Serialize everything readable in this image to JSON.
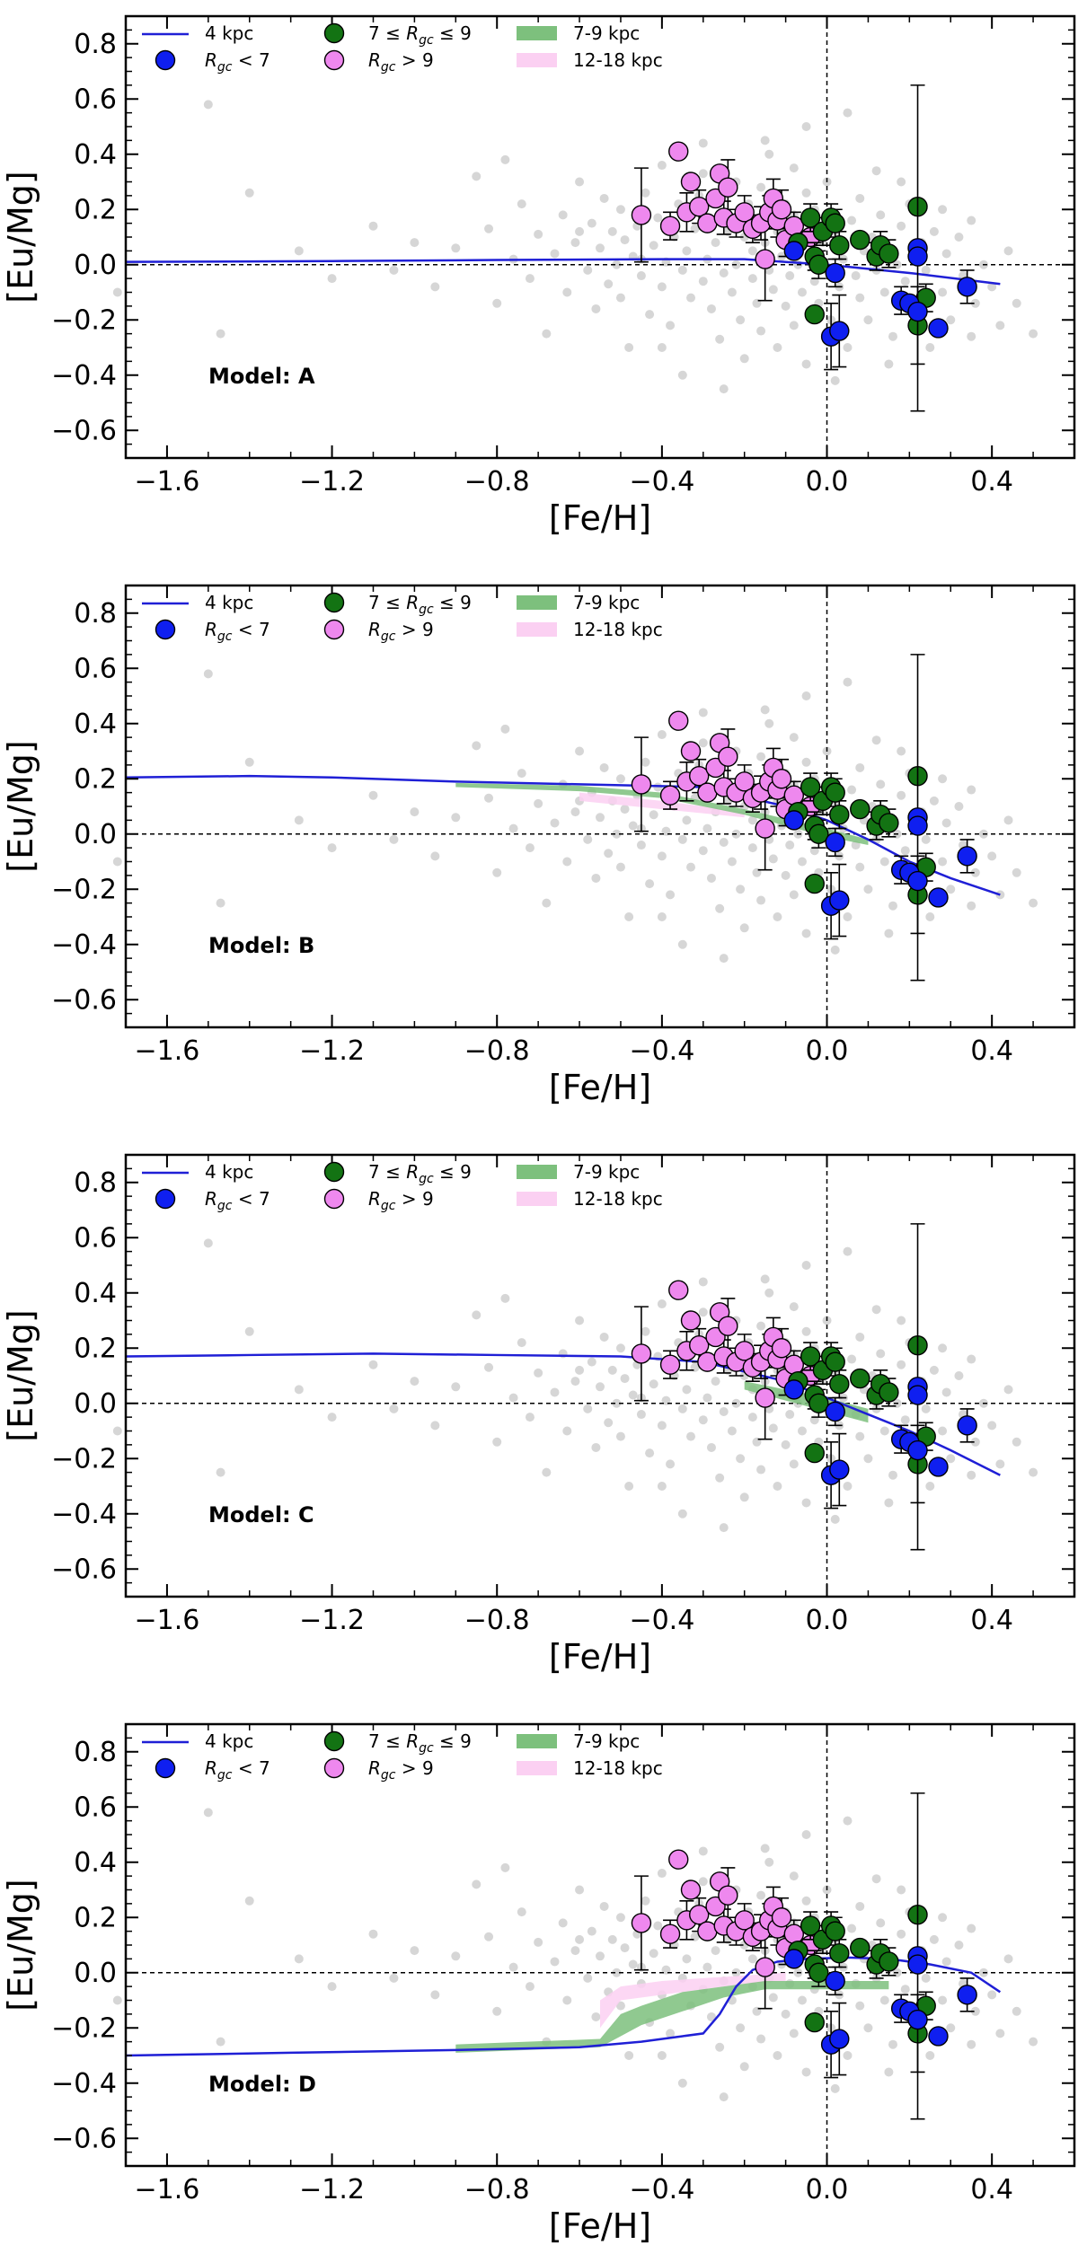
{
  "chart_data": {
    "type": "scatter",
    "xlabel": "[Fe/H]",
    "ylabel": "[Eu/Mg]",
    "xlim": [
      -1.7,
      0.6
    ],
    "ylim": [
      -0.7,
      0.9
    ],
    "xticks": [
      -1.6,
      -1.2,
      -0.8,
      -0.4,
      0.0,
      0.4
    ],
    "yticks": [
      -0.6,
      -0.4,
      -0.2,
      0.0,
      0.2,
      0.4,
      0.6,
      0.8
    ],
    "xtick_labels": [
      "−1.6",
      "−1.2",
      "−0.8",
      "−0.4",
      "0.0",
      "0.4"
    ],
    "ytick_labels": [
      "−0.6",
      "−0.4",
      "−0.2",
      "0.0",
      "0.2",
      "0.4",
      "0.6",
      "0.8"
    ],
    "reference_lines": {
      "x": 0.0,
      "y": 0.0
    },
    "legend": {
      "placement": "top-left",
      "entries": [
        {
          "key": "line4",
          "label_plain": "4 kpc"
        },
        {
          "key": "inner",
          "label_main": "R",
          "label_sub": "gc",
          "label_tail": " < 7"
        },
        {
          "key": "mid",
          "label_head": "7 ≤ ",
          "label_main": "R",
          "label_sub": "gc",
          "label_tail": " ≤ 9"
        },
        {
          "key": "outer",
          "label_main": "R",
          "label_sub": "gc",
          "label_tail": " > 9"
        },
        {
          "key": "band79",
          "label_plain": "7-9 kpc"
        },
        {
          "key": "band1218",
          "label_plain": "12-18 kpc"
        }
      ]
    },
    "colors": {
      "line4": "#1f1fd6",
      "inner": "#0f1ff0",
      "mid": "#137313",
      "outer": "#ee88ee",
      "band79": "#7dc07d",
      "band1218": "#fbd0f2",
      "background": "#d6d6d6"
    },
    "stars": {
      "outer": [
        {
          "x": -0.45,
          "y": 0.18,
          "e": 0.17
        },
        {
          "x": -0.38,
          "y": 0.14,
          "e": 0.05
        },
        {
          "x": -0.36,
          "y": 0.41,
          "e": 0.0
        },
        {
          "x": -0.34,
          "y": 0.19,
          "e": 0.07
        },
        {
          "x": -0.33,
          "y": 0.3,
          "e": 0.0
        },
        {
          "x": -0.31,
          "y": 0.21,
          "e": 0.06
        },
        {
          "x": -0.29,
          "y": 0.15,
          "e": 0.0
        },
        {
          "x": -0.27,
          "y": 0.24,
          "e": 0.0
        },
        {
          "x": -0.26,
          "y": 0.33,
          "e": 0.0
        },
        {
          "x": -0.25,
          "y": 0.17,
          "e": 0.06
        },
        {
          "x": -0.24,
          "y": 0.28,
          "e": 0.1
        },
        {
          "x": -0.22,
          "y": 0.15,
          "e": 0.05
        },
        {
          "x": -0.2,
          "y": 0.19,
          "e": 0.06
        },
        {
          "x": -0.18,
          "y": 0.13,
          "e": 0.05
        },
        {
          "x": -0.16,
          "y": 0.15,
          "e": 0.06
        },
        {
          "x": -0.15,
          "y": 0.02,
          "e": 0.15
        },
        {
          "x": -0.14,
          "y": 0.19,
          "e": 0.06
        },
        {
          "x": -0.13,
          "y": 0.24,
          "e": 0.07
        },
        {
          "x": -0.12,
          "y": 0.16,
          "e": 0.06
        },
        {
          "x": -0.11,
          "y": 0.2,
          "e": 0.07
        },
        {
          "x": -0.1,
          "y": 0.09,
          "e": 0.06
        },
        {
          "x": -0.08,
          "y": 0.14,
          "e": 0.05
        },
        {
          "x": -0.04,
          "y": 0.1,
          "e": 0.0
        }
      ],
      "mid": [
        {
          "x": -0.07,
          "y": 0.08,
          "e": 0.0
        },
        {
          "x": -0.04,
          "y": 0.17,
          "e": 0.05
        },
        {
          "x": -0.03,
          "y": 0.03,
          "e": 0.05
        },
        {
          "x": -0.03,
          "y": -0.18,
          "e": 0.0
        },
        {
          "x": -0.02,
          "y": 0.0,
          "e": 0.05
        },
        {
          "x": -0.01,
          "y": 0.12,
          "e": 0.05
        },
        {
          "x": 0.01,
          "y": 0.17,
          "e": 0.05
        },
        {
          "x": 0.02,
          "y": 0.15,
          "e": 0.05
        },
        {
          "x": 0.03,
          "y": 0.07,
          "e": 0.05
        },
        {
          "x": 0.08,
          "y": 0.09,
          "e": 0.0
        },
        {
          "x": 0.12,
          "y": 0.03,
          "e": 0.05
        },
        {
          "x": 0.13,
          "y": 0.07,
          "e": 0.05
        },
        {
          "x": 0.15,
          "y": 0.04,
          "e": 0.05
        },
        {
          "x": 0.22,
          "y": 0.21,
          "e": 0.0
        },
        {
          "x": 0.22,
          "y": -0.22,
          "e": 0.14
        },
        {
          "x": 0.24,
          "y": -0.12,
          "e": 0.05
        }
      ],
      "inner": [
        {
          "x": -0.08,
          "y": 0.05,
          "e": 0.0
        },
        {
          "x": 0.01,
          "y": -0.26,
          "e": 0.12
        },
        {
          "x": 0.02,
          "y": -0.03,
          "e": 0.05
        },
        {
          "x": 0.03,
          "y": -0.24,
          "e": 0.13
        },
        {
          "x": 0.18,
          "y": -0.13,
          "e": 0.05
        },
        {
          "x": 0.2,
          "y": -0.14,
          "e": 0.0
        },
        {
          "x": 0.22,
          "y": 0.06,
          "e": 0.59
        },
        {
          "x": 0.22,
          "y": 0.03,
          "e": 0.0
        },
        {
          "x": 0.22,
          "y": -0.17,
          "e": 0.0
        },
        {
          "x": 0.27,
          "y": -0.23,
          "e": 0.0
        },
        {
          "x": 0.34,
          "y": -0.08,
          "e": 0.06
        }
      ]
    },
    "background_stars": [
      [
        -1.72,
        -0.1
      ],
      [
        -1.5,
        0.58
      ],
      [
        -1.47,
        -0.25
      ],
      [
        -1.4,
        0.26
      ],
      [
        -1.28,
        0.05
      ],
      [
        -1.2,
        -0.05
      ],
      [
        -1.1,
        0.14
      ],
      [
        -1.05,
        -0.02
      ],
      [
        -1.0,
        0.08
      ],
      [
        -0.95,
        -0.08
      ],
      [
        -0.9,
        0.06
      ],
      [
        -0.85,
        0.32
      ],
      [
        -0.82,
        0.13
      ],
      [
        -0.8,
        -0.14
      ],
      [
        -0.78,
        0.38
      ],
      [
        -0.76,
        0.02
      ],
      [
        -0.74,
        0.22
      ],
      [
        -0.72,
        -0.05
      ],
      [
        -0.7,
        0.11
      ],
      [
        -0.68,
        -0.25
      ],
      [
        -0.66,
        0.04
      ],
      [
        -0.64,
        0.18
      ],
      [
        -0.63,
        -0.1
      ],
      [
        -0.61,
        0.08
      ],
      [
        -0.6,
        0.3
      ],
      [
        -0.58,
        -0.02
      ],
      [
        -0.57,
        0.15
      ],
      [
        -0.56,
        -0.16
      ],
      [
        -0.55,
        0.06
      ],
      [
        -0.54,
        0.24
      ],
      [
        -0.53,
        -0.07
      ],
      [
        -0.52,
        0.12
      ],
      [
        -0.51,
        0.0
      ],
      [
        -0.5,
        0.2
      ],
      [
        -0.5,
        -0.12
      ],
      [
        -0.49,
        0.09
      ],
      [
        -0.48,
        -0.3
      ],
      [
        -0.47,
        0.03
      ],
      [
        -0.46,
        0.14
      ],
      [
        -0.45,
        -0.04
      ],
      [
        -0.44,
        0.26
      ],
      [
        -0.43,
        -0.18
      ],
      [
        -0.42,
        0.07
      ],
      [
        -0.41,
        0.17
      ],
      [
        -0.4,
        -0.08
      ],
      [
        -0.4,
        0.36
      ],
      [
        -0.39,
        0.01
      ],
      [
        -0.38,
        -0.22
      ],
      [
        -0.37,
        0.1
      ],
      [
        -0.36,
        0.22
      ],
      [
        -0.35,
        -0.02
      ],
      [
        -0.35,
        -0.4
      ],
      [
        -0.34,
        0.05
      ],
      [
        -0.33,
        -0.12
      ],
      [
        -0.32,
        0.13
      ],
      [
        -0.31,
        0.25
      ],
      [
        -0.3,
        -0.06
      ],
      [
        -0.3,
        0.44
      ],
      [
        -0.29,
        0.02
      ],
      [
        -0.28,
        -0.16
      ],
      [
        -0.27,
        0.08
      ],
      [
        -0.26,
        -0.27
      ],
      [
        -0.25,
        0.18
      ],
      [
        -0.25,
        -0.03
      ],
      [
        -0.24,
        0.12
      ],
      [
        -0.23,
        -0.1
      ],
      [
        -0.22,
        0.3
      ],
      [
        -0.22,
        0.0
      ],
      [
        -0.21,
        -0.2
      ],
      [
        -0.2,
        0.1
      ],
      [
        -0.2,
        -0.34
      ],
      [
        -0.19,
        0.22
      ],
      [
        -0.18,
        -0.05
      ],
      [
        -0.18,
        0.05
      ],
      [
        -0.17,
        -0.14
      ],
      [
        -0.16,
        0.28
      ],
      [
        -0.16,
        -0.24
      ],
      [
        -0.15,
        0.08
      ],
      [
        -0.14,
        -0.02
      ],
      [
        -0.14,
        0.4
      ],
      [
        -0.13,
        -0.09
      ],
      [
        -0.12,
        0.12
      ],
      [
        -0.12,
        -0.3
      ],
      [
        -0.11,
        0.03
      ],
      [
        -0.1,
        -0.15
      ],
      [
        -0.1,
        0.22
      ],
      [
        -0.09,
        -0.04
      ],
      [
        -0.08,
        0.18
      ],
      [
        -0.08,
        -0.22
      ],
      [
        -0.07,
        0.0
      ],
      [
        -0.06,
        0.1
      ],
      [
        -0.06,
        -0.1
      ],
      [
        -0.05,
        0.26
      ],
      [
        -0.05,
        -0.36
      ],
      [
        -0.04,
        0.04
      ],
      [
        -0.03,
        -0.06
      ],
      [
        -0.03,
        0.2
      ],
      [
        -0.02,
        -0.14
      ],
      [
        -0.01,
        0.08
      ],
      [
        0.0,
        -0.02
      ],
      [
        0.0,
        0.3
      ],
      [
        0.01,
        -0.2
      ],
      [
        0.02,
        0.12
      ],
      [
        0.03,
        -0.08
      ],
      [
        0.04,
        0.02
      ],
      [
        0.05,
        -0.3
      ],
      [
        0.06,
        0.16
      ],
      [
        0.07,
        -0.04
      ],
      [
        0.08,
        0.24
      ],
      [
        0.08,
        -0.12
      ],
      [
        0.09,
        0.05
      ],
      [
        0.1,
        -0.2
      ],
      [
        0.11,
        0.1
      ],
      [
        0.12,
        -0.02
      ],
      [
        0.13,
        0.18
      ],
      [
        0.14,
        -0.1
      ],
      [
        0.15,
        0.06
      ],
      [
        0.16,
        -0.26
      ],
      [
        0.17,
        0.0
      ],
      [
        0.18,
        0.14
      ],
      [
        0.19,
        -0.06
      ],
      [
        0.2,
        0.22
      ],
      [
        0.21,
        -0.16
      ],
      [
        0.23,
        0.08
      ],
      [
        0.24,
        -0.02
      ],
      [
        0.25,
        -0.3
      ],
      [
        0.26,
        0.12
      ],
      [
        0.28,
        -0.1
      ],
      [
        0.29,
        0.04
      ],
      [
        0.3,
        -0.2
      ],
      [
        0.32,
        0.1
      ],
      [
        0.33,
        -0.04
      ],
      [
        0.35,
        0.16
      ],
      [
        0.36,
        -0.14
      ],
      [
        0.38,
        0.0
      ],
      [
        0.4,
        -0.08
      ],
      [
        0.42,
        -0.22
      ],
      [
        0.44,
        0.05
      ],
      [
        0.46,
        -0.14
      ],
      [
        0.5,
        -0.25
      ],
      [
        -0.05,
        0.5
      ],
      [
        0.05,
        0.55
      ],
      [
        -0.15,
        0.45
      ],
      [
        0.12,
        0.34
      ],
      [
        -0.25,
        -0.45
      ],
      [
        0.02,
        -0.42
      ],
      [
        0.15,
        -0.36
      ],
      [
        -0.4,
        -0.3
      ],
      [
        0.28,
        0.2
      ],
      [
        -0.6,
        0.12
      ],
      [
        -0.3,
        0.33
      ],
      [
        0.18,
        0.3
      ],
      [
        -0.08,
        0.35
      ],
      [
        0.35,
        -0.26
      ],
      [
        -0.45,
        0.02
      ]
    ],
    "panels": [
      {
        "label": "Model: A",
        "line4": [
          [
            -1.7,
            0.01
          ],
          [
            -1.2,
            0.013
          ],
          [
            -0.8,
            0.017
          ],
          [
            -0.4,
            0.02
          ],
          [
            -0.2,
            0.02
          ],
          [
            0.0,
            0.0
          ],
          [
            0.2,
            -0.03
          ],
          [
            0.42,
            -0.07
          ]
        ],
        "band79": [],
        "band1218": []
      },
      {
        "label": "Model: B",
        "line4": [
          [
            -1.7,
            0.205
          ],
          [
            -1.4,
            0.21
          ],
          [
            -1.2,
            0.205
          ],
          [
            -0.9,
            0.19
          ],
          [
            -0.6,
            0.18
          ],
          [
            -0.3,
            0.17
          ],
          [
            -0.1,
            0.1
          ],
          [
            0.0,
            0.05
          ],
          [
            0.1,
            -0.02
          ],
          [
            0.2,
            -0.1
          ],
          [
            0.3,
            -0.16
          ],
          [
            0.42,
            -0.22
          ]
        ],
        "band79": [
          [
            -0.9,
            0.185,
            0.17
          ],
          [
            -0.6,
            0.175,
            0.155
          ],
          [
            -0.4,
            0.15,
            0.13
          ],
          [
            -0.2,
            0.09,
            0.07
          ],
          [
            0.0,
            0.02,
            -0.01
          ],
          [
            0.1,
            -0.02,
            -0.04
          ]
        ],
        "band1218": [
          [
            -0.6,
            0.15,
            0.12
          ],
          [
            -0.4,
            0.12,
            0.09
          ],
          [
            -0.2,
            0.08,
            0.06
          ]
        ]
      },
      {
        "label": "Model: C",
        "line4": [
          [
            -1.7,
            0.17
          ],
          [
            -1.4,
            0.175
          ],
          [
            -1.1,
            0.18
          ],
          [
            -0.8,
            0.175
          ],
          [
            -0.5,
            0.17
          ],
          [
            -0.3,
            0.15
          ],
          [
            -0.1,
            0.08
          ],
          [
            0.0,
            0.02
          ],
          [
            0.1,
            -0.04
          ],
          [
            0.2,
            -0.1
          ],
          [
            0.3,
            -0.17
          ],
          [
            0.42,
            -0.26
          ]
        ],
        "band79": [
          [
            -0.2,
            0.08,
            0.05
          ],
          [
            0.0,
            0.02,
            -0.03
          ],
          [
            0.1,
            -0.02,
            -0.07
          ]
        ],
        "band1218": []
      },
      {
        "label": "Model: D",
        "line4": [
          [
            -1.7,
            -0.3
          ],
          [
            -1.3,
            -0.29
          ],
          [
            -0.9,
            -0.28
          ],
          [
            -0.6,
            -0.27
          ],
          [
            -0.45,
            -0.25
          ],
          [
            -0.35,
            -0.23
          ],
          [
            -0.3,
            -0.22
          ],
          [
            -0.26,
            -0.15
          ],
          [
            -0.22,
            -0.05
          ],
          [
            -0.18,
            0.01
          ],
          [
            -0.12,
            0.04
          ],
          [
            -0.05,
            0.05
          ],
          [
            0.05,
            0.055
          ],
          [
            0.15,
            0.05
          ],
          [
            0.25,
            0.03
          ],
          [
            0.35,
            0.0
          ],
          [
            0.42,
            -0.07
          ]
        ],
        "band79": [
          [
            -0.9,
            -0.26,
            -0.29
          ],
          [
            -0.55,
            -0.24,
            -0.27
          ],
          [
            -0.5,
            -0.15,
            -0.23
          ],
          [
            -0.45,
            -0.12,
            -0.19
          ],
          [
            -0.35,
            -0.07,
            -0.14
          ],
          [
            -0.25,
            -0.05,
            -0.09
          ],
          [
            -0.15,
            -0.03,
            -0.06
          ],
          [
            0.0,
            -0.03,
            -0.06
          ],
          [
            0.15,
            -0.03,
            -0.06
          ]
        ],
        "band1218": [
          [
            -0.55,
            -0.1,
            -0.2
          ],
          [
            -0.5,
            -0.05,
            -0.1
          ],
          [
            -0.4,
            -0.03,
            -0.08
          ],
          [
            -0.3,
            -0.02,
            -0.06
          ],
          [
            -0.2,
            -0.01,
            -0.04
          ],
          [
            -0.1,
            0.0,
            -0.03
          ]
        ]
      }
    ]
  }
}
